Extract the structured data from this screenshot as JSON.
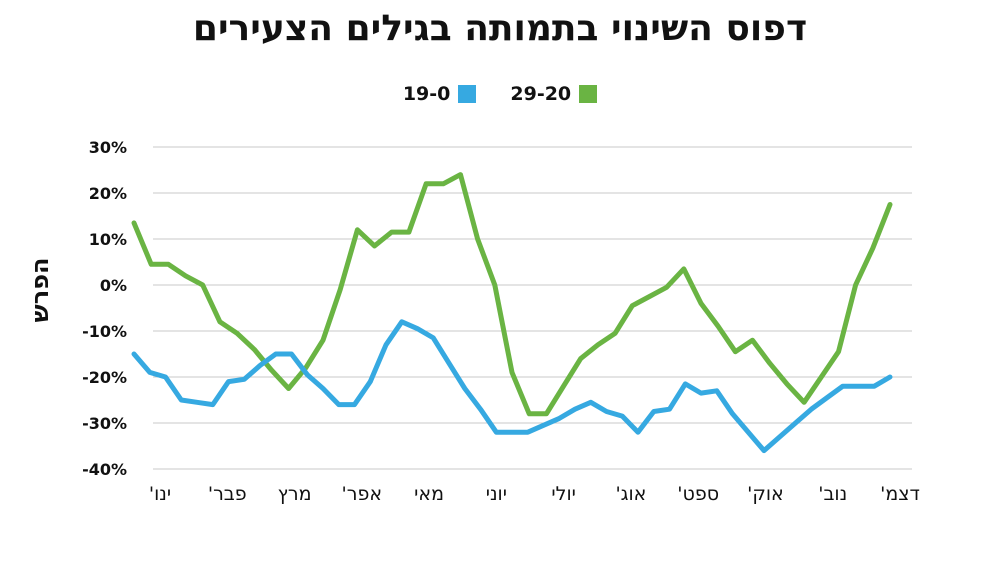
{
  "chart_data": {
    "type": "line",
    "title": "דפוס השינוי בתמותה בגילים הצעירים",
    "ylabel": "הפרש",
    "xlabel": "",
    "ylim": [
      -40,
      30
    ],
    "yticks": [
      30,
      20,
      10,
      0,
      -10,
      -20,
      -30,
      -40
    ],
    "ytick_labels": [
      "30%",
      "20%",
      "10%",
      "0%",
      "-10%",
      "-20%",
      "-30%",
      "-40%"
    ],
    "month_labels": [
      "ינו'",
      "פבר'",
      "מרץ",
      "אפר'",
      "מאי",
      "יוני",
      "יולי",
      "אוג'",
      "ספט'",
      "אוק'",
      "נוב'",
      "דצמ'"
    ],
    "grid": true,
    "legend_position": "top-center",
    "series": [
      {
        "name": "29-20",
        "color": "#6ab443",
        "values": [
          13.5,
          4.5,
          4.5,
          2,
          0,
          -8,
          -10.5,
          -14,
          -18.5,
          -22.5,
          -18,
          -12,
          -1,
          12,
          8.5,
          11.5,
          11.5,
          22,
          22,
          24,
          10,
          0,
          -19,
          -28,
          -28,
          -22,
          -16,
          -13,
          -10.5,
          -4.5,
          -2.5,
          -0.5,
          3.5,
          -4,
          -9,
          -14.5,
          -12,
          -17,
          -21.5,
          -25.5,
          -20,
          -14.5,
          0,
          8,
          17.5
        ]
      },
      {
        "name": "19-0",
        "color": "#36a9e1",
        "values": [
          -15,
          -19,
          -20,
          -25,
          -25.5,
          -26,
          -21,
          -20.5,
          -17.5,
          -15,
          -15,
          -19.5,
          -22.5,
          -26,
          -26,
          -21,
          -13,
          -8,
          -9.5,
          -11.5,
          -17,
          -22.5,
          -27,
          -32,
          -32,
          -32,
          -30.5,
          -29,
          -27,
          -25.5,
          -27.5,
          -28.5,
          -32,
          -27.5,
          -27,
          -21.5,
          -23.5,
          -23,
          -28,
          -32,
          -36,
          -33,
          -30,
          -27,
          -24.5,
          -22,
          -22,
          -22,
          -20
        ]
      }
    ]
  }
}
